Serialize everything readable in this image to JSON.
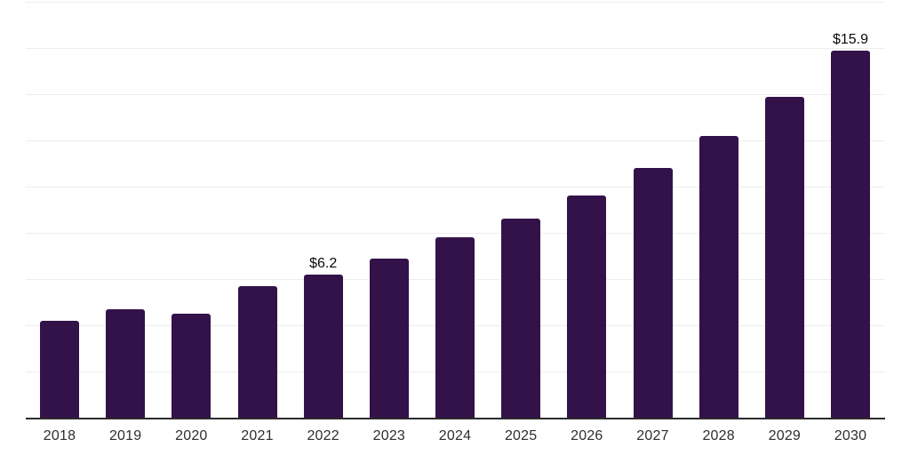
{
  "chart_data": {
    "type": "bar",
    "title": "",
    "xlabel": "",
    "ylabel": "",
    "categories": [
      "2018",
      "2019",
      "2020",
      "2021",
      "2022",
      "2023",
      "2024",
      "2025",
      "2026",
      "2027",
      "2028",
      "2029",
      "2030"
    ],
    "values": [
      4.2,
      4.7,
      4.5,
      5.7,
      6.2,
      6.9,
      7.8,
      8.6,
      9.6,
      10.8,
      12.2,
      13.9,
      15.9
    ],
    "labeled_points": [
      {
        "category": "2022",
        "label": "$6.2"
      },
      {
        "category": "2030",
        "label": "$15.9"
      }
    ],
    "ylim": [
      0,
      18
    ],
    "gridline_step": 2,
    "grid": "horizontal-only",
    "legend_position": "none",
    "colors": {
      "bar_fill": "#331249",
      "gridline": "#ededed",
      "axis_line": "#2b2b2b",
      "tick_label": "#2e2e2e",
      "data_label": "#0a0a0a",
      "background": "#ffffff"
    }
  }
}
